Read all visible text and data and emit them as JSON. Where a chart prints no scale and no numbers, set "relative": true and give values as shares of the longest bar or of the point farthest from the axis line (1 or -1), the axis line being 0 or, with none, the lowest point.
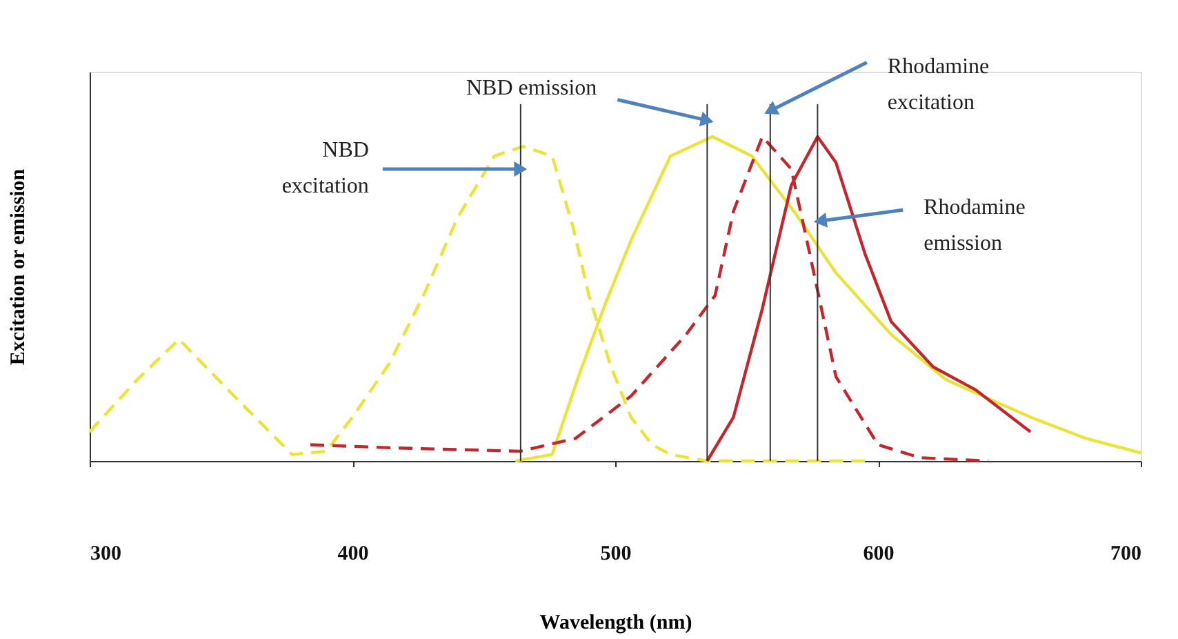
{
  "chart_data": {
    "type": "line",
    "relative": true,
    "xlabel": "Wavelength (nm)",
    "ylabel": "Excitation or emission",
    "xlim": [
      300,
      700
    ],
    "xticks": [
      300,
      400,
      500,
      600,
      700
    ],
    "tick_labels": "x",
    "grid": false,
    "marker": "none",
    "series": [
      {
        "color": "#e8e43a",
        "line_style": "dashed",
        "x": [
          300,
          318,
          334,
          355,
          377,
          390,
          400,
          414,
          427,
          440,
          454,
          465,
          476,
          484,
          490,
          498,
          506,
          514,
          521,
          535,
          560,
          595
        ],
        "values": [
          0.09,
          0.25,
          0.375,
          0.2,
          0.02,
          0.03,
          0.135,
          0.3,
          0.51,
          0.75,
          0.94,
          0.97,
          0.94,
          0.72,
          0.51,
          0.3,
          0.135,
          0.05,
          0.02,
          0,
          0,
          0
        ]
      },
      {
        "color": "#e8e43a",
        "line_style": "solid",
        "x": [
          462,
          476,
          486,
          496,
          506,
          521,
          537,
          552,
          568,
          584,
          605,
          626,
          658,
          679,
          700
        ],
        "values": [
          0,
          0.02,
          0.26,
          0.48,
          0.68,
          0.94,
          1.0,
          0.94,
          0.77,
          0.58,
          0.39,
          0.25,
          0.135,
          0.07,
          0.025
        ]
      },
      {
        "color": "#c0282e",
        "line_style": "dashed",
        "x": [
          384,
          417,
          464,
          485,
          506,
          527,
          538,
          545,
          556,
          567,
          574,
          584,
          600,
          616,
          642
        ],
        "values": [
          0.05,
          0.04,
          0.03,
          0.07,
          0.2,
          0.39,
          0.51,
          0.77,
          1.0,
          0.9,
          0.64,
          0.26,
          0.05,
          0.01,
          0
        ]
      },
      {
        "color": "#c0282e",
        "line_style": "solid",
        "x": [
          535,
          545,
          556,
          567,
          577,
          584,
          595,
          605,
          621,
          637,
          658
        ],
        "values": [
          0,
          0.135,
          0.47,
          0.85,
          1.0,
          0.92,
          0.64,
          0.43,
          0.29,
          0.22,
          0.09
        ]
      }
    ],
    "ref_lines": [
      {
        "axis": "x",
        "value": 464,
        "color": "#333333"
      },
      {
        "axis": "x",
        "value": 535,
        "color": "#333333"
      },
      {
        "axis": "x",
        "value": 559,
        "color": "#333333"
      },
      {
        "axis": "x",
        "value": 577,
        "color": "#333333"
      }
    ],
    "annotations": [
      {
        "text": "NBD\nexcitation",
        "x": 464,
        "y": 0.9
      },
      {
        "text": "NBD emission",
        "x": 535,
        "y": 1.05
      },
      {
        "text": "Rhodamine\nexcitation",
        "x": 559,
        "y": 1.08
      },
      {
        "text": "Rhodamine\nemission",
        "x": 578,
        "y": 0.74
      }
    ]
  }
}
